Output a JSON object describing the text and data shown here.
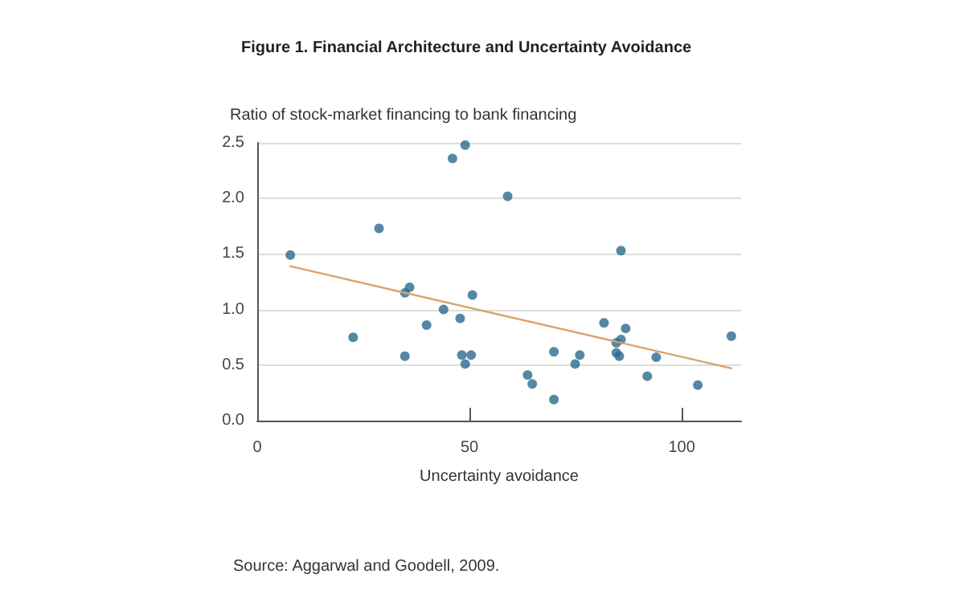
{
  "chart_data": {
    "type": "scatter",
    "title": "Figure 1. Financial Architecture and Uncertainty Avoidance",
    "ylabel": "Ratio of stock-market financing to bank financing",
    "xlabel": "Uncertainty avoidance",
    "annotations": [
      "Source: Aggarwal and Goodell, 2009."
    ],
    "series": [
      {
        "marker": "circle",
        "color": "#2b6a8e",
        "x": [
          7.8,
          22.6,
          28.7,
          34.8,
          35.9,
          34.8,
          39.9,
          43.9,
          46,
          47.8,
          48.2,
          50.4,
          49,
          49,
          50.7,
          59,
          63.7,
          64.8,
          69.9,
          69.9,
          74.9,
          76,
          81.7,
          84.6,
          85.7,
          84.6,
          85.3,
          85.7,
          86.8,
          91.9,
          94,
          103.8,
          111.7
        ],
        "values": [
          1.49,
          0.75,
          1.73,
          1.15,
          1.2,
          0.58,
          0.86,
          1.0,
          2.36,
          0.92,
          0.59,
          0.59,
          0.51,
          2.48,
          1.13,
          2.02,
          0.41,
          0.33,
          0.19,
          0.62,
          0.51,
          0.59,
          0.88,
          0.7,
          0.73,
          0.61,
          0.58,
          1.53,
          0.83,
          0.4,
          0.57,
          0.32,
          0.76
        ]
      },
      {
        "type": "line",
        "color": "#d9a26e",
        "x": [
          7.8,
          111.7
        ],
        "values": [
          1.39,
          0.47
        ]
      }
    ],
    "xlim": [
      0,
      114
    ],
    "xticks": [
      0,
      50,
      100
    ],
    "ylim": [
      0,
      2.5
    ],
    "yticks": [
      {
        "value": 0,
        "label": "0.0"
      },
      0.5,
      {
        "value": 1,
        "label": "1.0"
      },
      1.5,
      {
        "value": 2,
        "label": "2.0"
      },
      2.5
    ],
    "grid": "y"
  }
}
